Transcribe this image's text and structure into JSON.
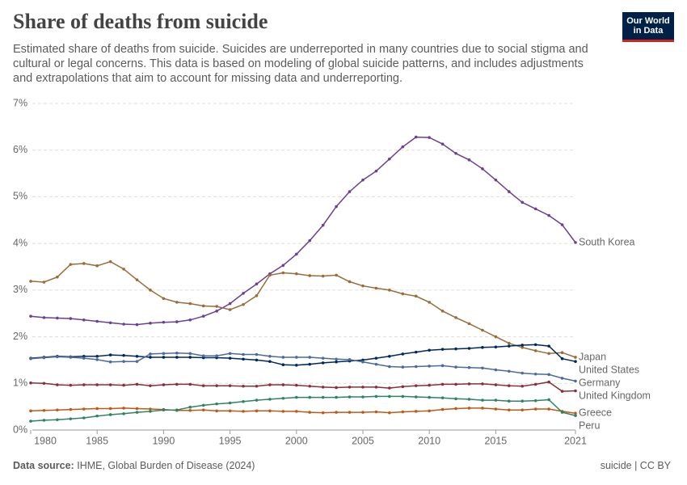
{
  "header": {
    "title": "Share of deaths from suicide",
    "subtitle": "Estimated share of deaths from suicide. Suicides are underreported in many countries due to social stigma and cultural or legal concerns. This data is based on modeling of global suicide patterns, and includes adjustments and extrapolations that aim to account for missing data and underreporting.",
    "logo": "Our World in Data"
  },
  "footer": {
    "source_label": "Data source:",
    "source": "IHME, Global Burden of Disease (2024)",
    "license": "suicide | CC BY"
  },
  "chart_data": {
    "type": "line",
    "x": [
      1980,
      1981,
      1982,
      1983,
      1984,
      1985,
      1986,
      1987,
      1988,
      1989,
      1990,
      1991,
      1992,
      1993,
      1994,
      1995,
      1996,
      1997,
      1998,
      1999,
      2000,
      2001,
      2002,
      2003,
      2004,
      2005,
      2006,
      2007,
      2008,
      2009,
      2010,
      2011,
      2012,
      2013,
      2014,
      2015,
      2016,
      2017,
      2018,
      2019,
      2020,
      2021
    ],
    "xlim": [
      1980,
      2021
    ],
    "xticks": [
      1980,
      1985,
      1990,
      1995,
      2000,
      2005,
      2010,
      2015,
      2021
    ],
    "ylim": [
      0,
      7
    ],
    "yticks": [
      {
        "value": 0,
        "label": "0%"
      },
      {
        "value": 1,
        "label": "1%"
      },
      {
        "value": 2,
        "label": "2%"
      },
      {
        "value": 3,
        "label": "3%"
      },
      {
        "value": 4,
        "label": "4%"
      },
      {
        "value": 5,
        "label": "5%"
      },
      {
        "value": 6,
        "label": "6%"
      },
      {
        "value": 7,
        "label": "7%"
      }
    ],
    "grid": true,
    "series": [
      {
        "name": "South Korea",
        "color": "#6d3e91",
        "values": [
          2.44,
          2.41,
          2.4,
          2.39,
          2.36,
          2.33,
          2.3,
          2.27,
          2.26,
          2.29,
          2.31,
          2.32,
          2.36,
          2.44,
          2.55,
          2.71,
          2.93,
          3.13,
          3.35,
          3.53,
          3.77,
          4.06,
          4.39,
          4.79,
          5.11,
          5.36,
          5.55,
          5.81,
          6.07,
          6.28,
          6.27,
          6.13,
          5.93,
          5.79,
          5.6,
          5.36,
          5.11,
          4.88,
          4.74,
          4.6,
          4.4,
          4.02
        ]
      },
      {
        "name": "Japan",
        "color": "#996d39",
        "values": [
          3.19,
          3.17,
          3.28,
          3.55,
          3.57,
          3.52,
          3.61,
          3.45,
          3.22,
          3.0,
          2.82,
          2.74,
          2.71,
          2.66,
          2.65,
          2.58,
          2.69,
          2.88,
          3.32,
          3.37,
          3.35,
          3.31,
          3.3,
          3.32,
          3.18,
          3.09,
          3.04,
          3.0,
          2.92,
          2.87,
          2.74,
          2.55,
          2.41,
          2.28,
          2.14,
          2.0,
          1.86,
          1.77,
          1.7,
          1.64,
          1.66,
          1.56
        ]
      },
      {
        "name": "United States",
        "color": "#00295b",
        "values": [
          1.54,
          1.56,
          1.58,
          1.57,
          1.58,
          1.58,
          1.61,
          1.6,
          1.58,
          1.56,
          1.56,
          1.56,
          1.56,
          1.55,
          1.55,
          1.54,
          1.52,
          1.5,
          1.47,
          1.4,
          1.39,
          1.41,
          1.44,
          1.46,
          1.48,
          1.5,
          1.54,
          1.58,
          1.63,
          1.67,
          1.71,
          1.73,
          1.74,
          1.75,
          1.77,
          1.78,
          1.8,
          1.82,
          1.83,
          1.8,
          1.53,
          1.47
        ]
      },
      {
        "name": "Germany",
        "color": "#4c6a9c",
        "values": [
          1.53,
          1.55,
          1.57,
          1.56,
          1.54,
          1.51,
          1.46,
          1.47,
          1.47,
          1.63,
          1.64,
          1.65,
          1.64,
          1.59,
          1.59,
          1.64,
          1.62,
          1.62,
          1.58,
          1.56,
          1.56,
          1.56,
          1.54,
          1.52,
          1.51,
          1.46,
          1.41,
          1.36,
          1.35,
          1.36,
          1.37,
          1.38,
          1.35,
          1.34,
          1.33,
          1.29,
          1.26,
          1.22,
          1.2,
          1.19,
          1.11,
          1.05
        ]
      },
      {
        "name": "United Kingdom",
        "color": "#883039",
        "values": [
          1.01,
          1.0,
          0.97,
          0.96,
          0.97,
          0.97,
          0.97,
          0.96,
          0.98,
          0.95,
          0.97,
          0.98,
          0.98,
          0.95,
          0.95,
          0.95,
          0.94,
          0.94,
          0.97,
          0.97,
          0.96,
          0.94,
          0.92,
          0.91,
          0.92,
          0.92,
          0.92,
          0.9,
          0.93,
          0.95,
          0.96,
          0.98,
          0.98,
          0.99,
          0.99,
          0.97,
          0.95,
          0.94,
          0.98,
          1.03,
          0.83,
          0.84
        ]
      },
      {
        "name": "Greece",
        "color": "#c05917",
        "values": [
          0.41,
          0.42,
          0.43,
          0.44,
          0.45,
          0.46,
          0.46,
          0.47,
          0.46,
          0.45,
          0.44,
          0.42,
          0.42,
          0.43,
          0.41,
          0.41,
          0.4,
          0.41,
          0.41,
          0.4,
          0.4,
          0.38,
          0.37,
          0.38,
          0.38,
          0.38,
          0.39,
          0.37,
          0.39,
          0.4,
          0.41,
          0.44,
          0.46,
          0.47,
          0.47,
          0.45,
          0.43,
          0.43,
          0.45,
          0.45,
          0.4,
          0.36
        ]
      },
      {
        "name": "Peru",
        "color": "#2c8465",
        "values": [
          0.19,
          0.21,
          0.22,
          0.24,
          0.26,
          0.3,
          0.33,
          0.35,
          0.38,
          0.4,
          0.43,
          0.43,
          0.49,
          0.53,
          0.56,
          0.58,
          0.61,
          0.64,
          0.66,
          0.68,
          0.7,
          0.7,
          0.7,
          0.7,
          0.71,
          0.71,
          0.72,
          0.72,
          0.72,
          0.71,
          0.7,
          0.69,
          0.67,
          0.66,
          0.64,
          0.64,
          0.62,
          0.62,
          0.63,
          0.65,
          0.38,
          0.31
        ]
      }
    ]
  }
}
